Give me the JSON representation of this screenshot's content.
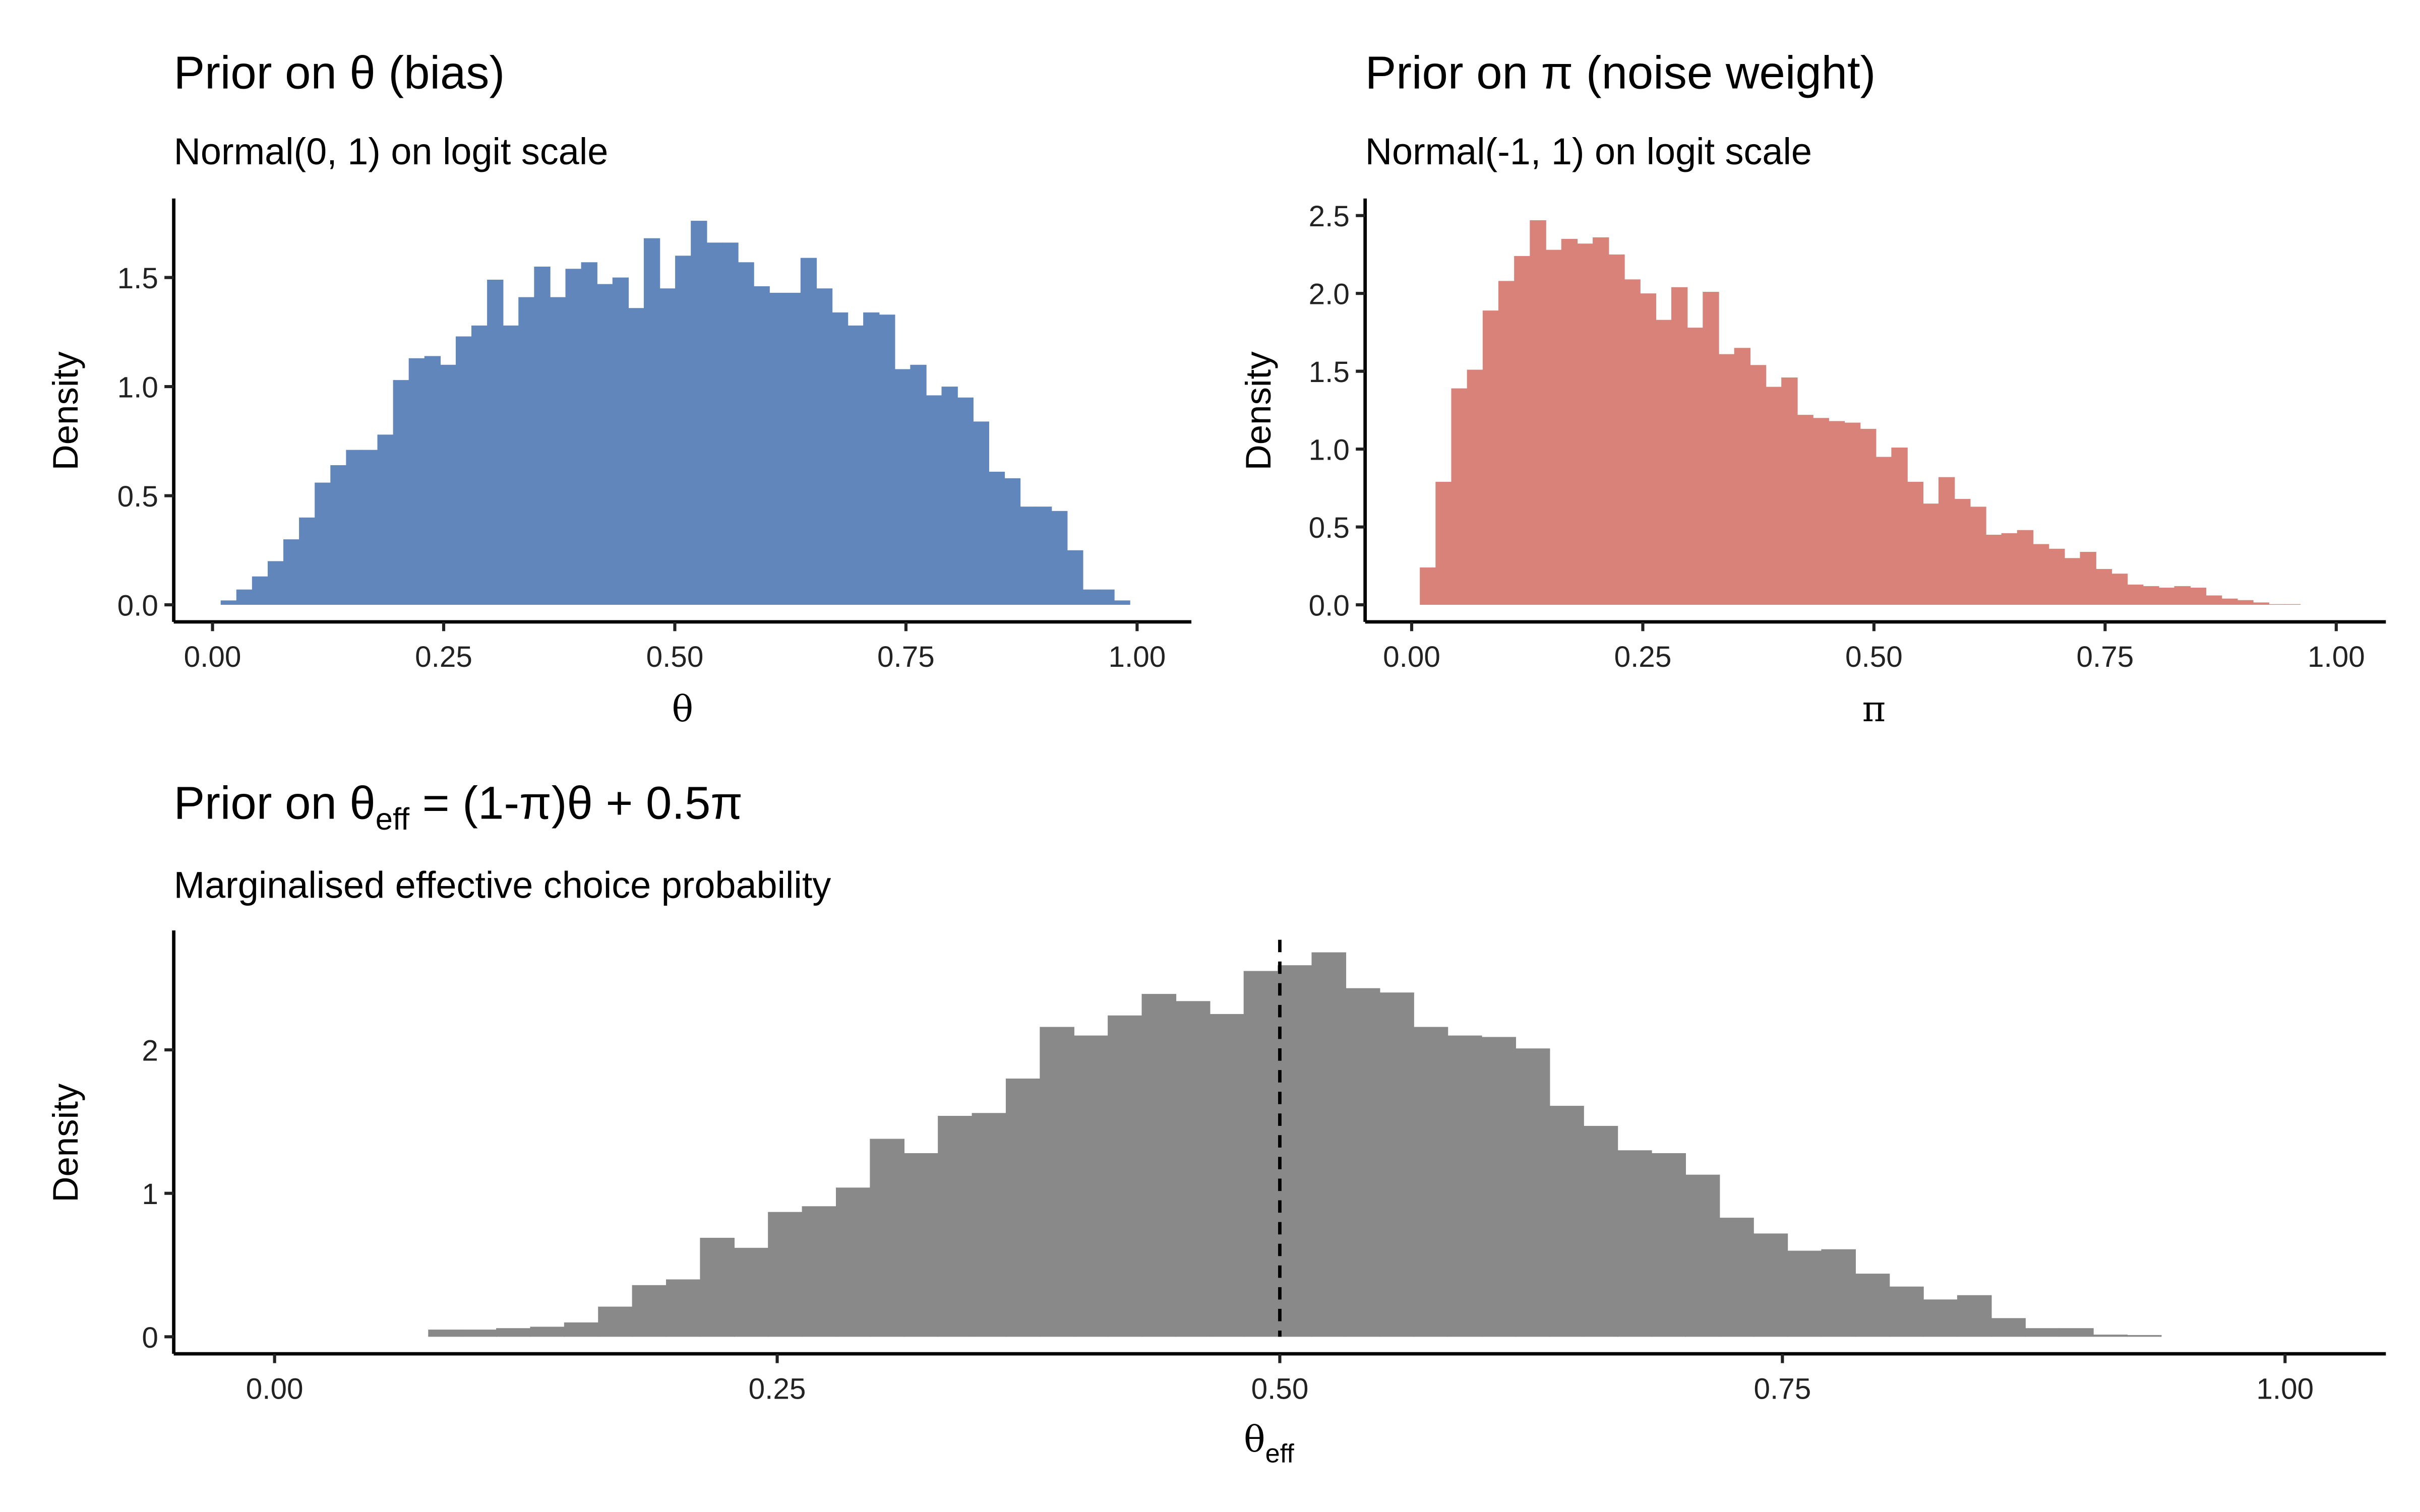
{
  "chart_data": [
    {
      "type": "bar",
      "id": "theta",
      "title": "Prior on θ (bias)",
      "subtitle": "Normal(0, 1) on logit scale",
      "xlabel": "θ",
      "ylabel": "Density",
      "color": "#6186BC",
      "xlim": [
        0,
        1
      ],
      "ylim": [
        0,
        1.8
      ],
      "xticks": [
        "0.00",
        "0.25",
        "0.50",
        "0.75",
        "1.00"
      ],
      "yticks": [
        "0.0",
        "0.5",
        "1.0",
        "1.5"
      ],
      "bin_start": 0.0088,
      "bin_width": 0.01695,
      "values": [
        0.02,
        0.07,
        0.13,
        0.2,
        0.3,
        0.4,
        0.56,
        0.64,
        0.71,
        0.71,
        0.78,
        1.03,
        1.13,
        1.14,
        1.1,
        1.23,
        1.28,
        1.49,
        1.28,
        1.41,
        1.55,
        1.41,
        1.54,
        1.57,
        1.47,
        1.5,
        1.36,
        1.68,
        1.45,
        1.6,
        1.76,
        1.66,
        1.66,
        1.57,
        1.46,
        1.43,
        1.43,
        1.59,
        1.45,
        1.34,
        1.28,
        1.34,
        1.33,
        1.08,
        1.1,
        0.96,
        1.0,
        0.95,
        0.84,
        0.61,
        0.58,
        0.45,
        0.45,
        0.43,
        0.25,
        0.07,
        0.07,
        0.02
      ]
    },
    {
      "type": "bar",
      "id": "pi",
      "title": "Prior on π (noise weight)",
      "subtitle": "Normal(-1, 1) on logit scale",
      "xlabel": "π",
      "ylabel": "Density",
      "color": "#D8827A",
      "xlim": [
        0,
        1
      ],
      "ylim": [
        0,
        2.6
      ],
      "xticks": [
        "0.00",
        "0.25",
        "0.50",
        "0.75",
        "1.00"
      ],
      "yticks": [
        "0.0",
        "0.5",
        "1.0",
        "1.5",
        "2.0",
        "2.5"
      ],
      "bin_start": 0.0088,
      "bin_width": 0.017,
      "values": [
        0.24,
        0.79,
        1.39,
        1.51,
        1.89,
        2.08,
        2.24,
        2.47,
        2.28,
        2.35,
        2.32,
        2.36,
        2.25,
        2.09,
        2.0,
        1.83,
        2.04,
        1.78,
        2.01,
        1.61,
        1.65,
        1.54,
        1.4,
        1.46,
        1.22,
        1.2,
        1.18,
        1.17,
        1.13,
        0.95,
        1.01,
        0.79,
        0.65,
        0.82,
        0.68,
        0.63,
        0.45,
        0.46,
        0.48,
        0.39,
        0.36,
        0.3,
        0.34,
        0.23,
        0.2,
        0.13,
        0.12,
        0.11,
        0.12,
        0.11,
        0.06,
        0.04,
        0.03,
        0.015,
        0.004,
        0.004
      ]
    },
    {
      "type": "bar",
      "id": "theta_eff",
      "title": "Prior on θ",
      "title_sub": "eff",
      "title_rest": " = (1-π)θ + 0.5π",
      "subtitle": "Marginalised effective choice probability",
      "xlabel": "θ",
      "xlabel_sub": "eff",
      "ylabel": "Density",
      "color": "#898989",
      "xlim": [
        0,
        1
      ],
      "ylim": [
        0,
        2.8
      ],
      "xticks": [
        "0.00",
        "0.25",
        "0.50",
        "0.75",
        "1.00"
      ],
      "yticks": [
        "0",
        "1",
        "2"
      ],
      "reference_line": {
        "x": 0.5,
        "style": "dashed"
      },
      "bin_start": 0.0764,
      "bin_width": 0.0169,
      "values": [
        0.05,
        0.05,
        0.06,
        0.07,
        0.1,
        0.21,
        0.36,
        0.4,
        0.69,
        0.62,
        0.87,
        0.91,
        1.04,
        1.38,
        1.28,
        1.54,
        1.56,
        1.8,
        2.16,
        2.1,
        2.24,
        2.39,
        2.34,
        2.25,
        2.55,
        2.59,
        2.68,
        2.43,
        2.4,
        2.16,
        2.1,
        2.09,
        2.01,
        1.61,
        1.47,
        1.3,
        1.28,
        1.13,
        0.83,
        0.72,
        0.6,
        0.61,
        0.44,
        0.35,
        0.26,
        0.29,
        0.13,
        0.06,
        0.06,
        0.015,
        0.012
      ]
    }
  ]
}
